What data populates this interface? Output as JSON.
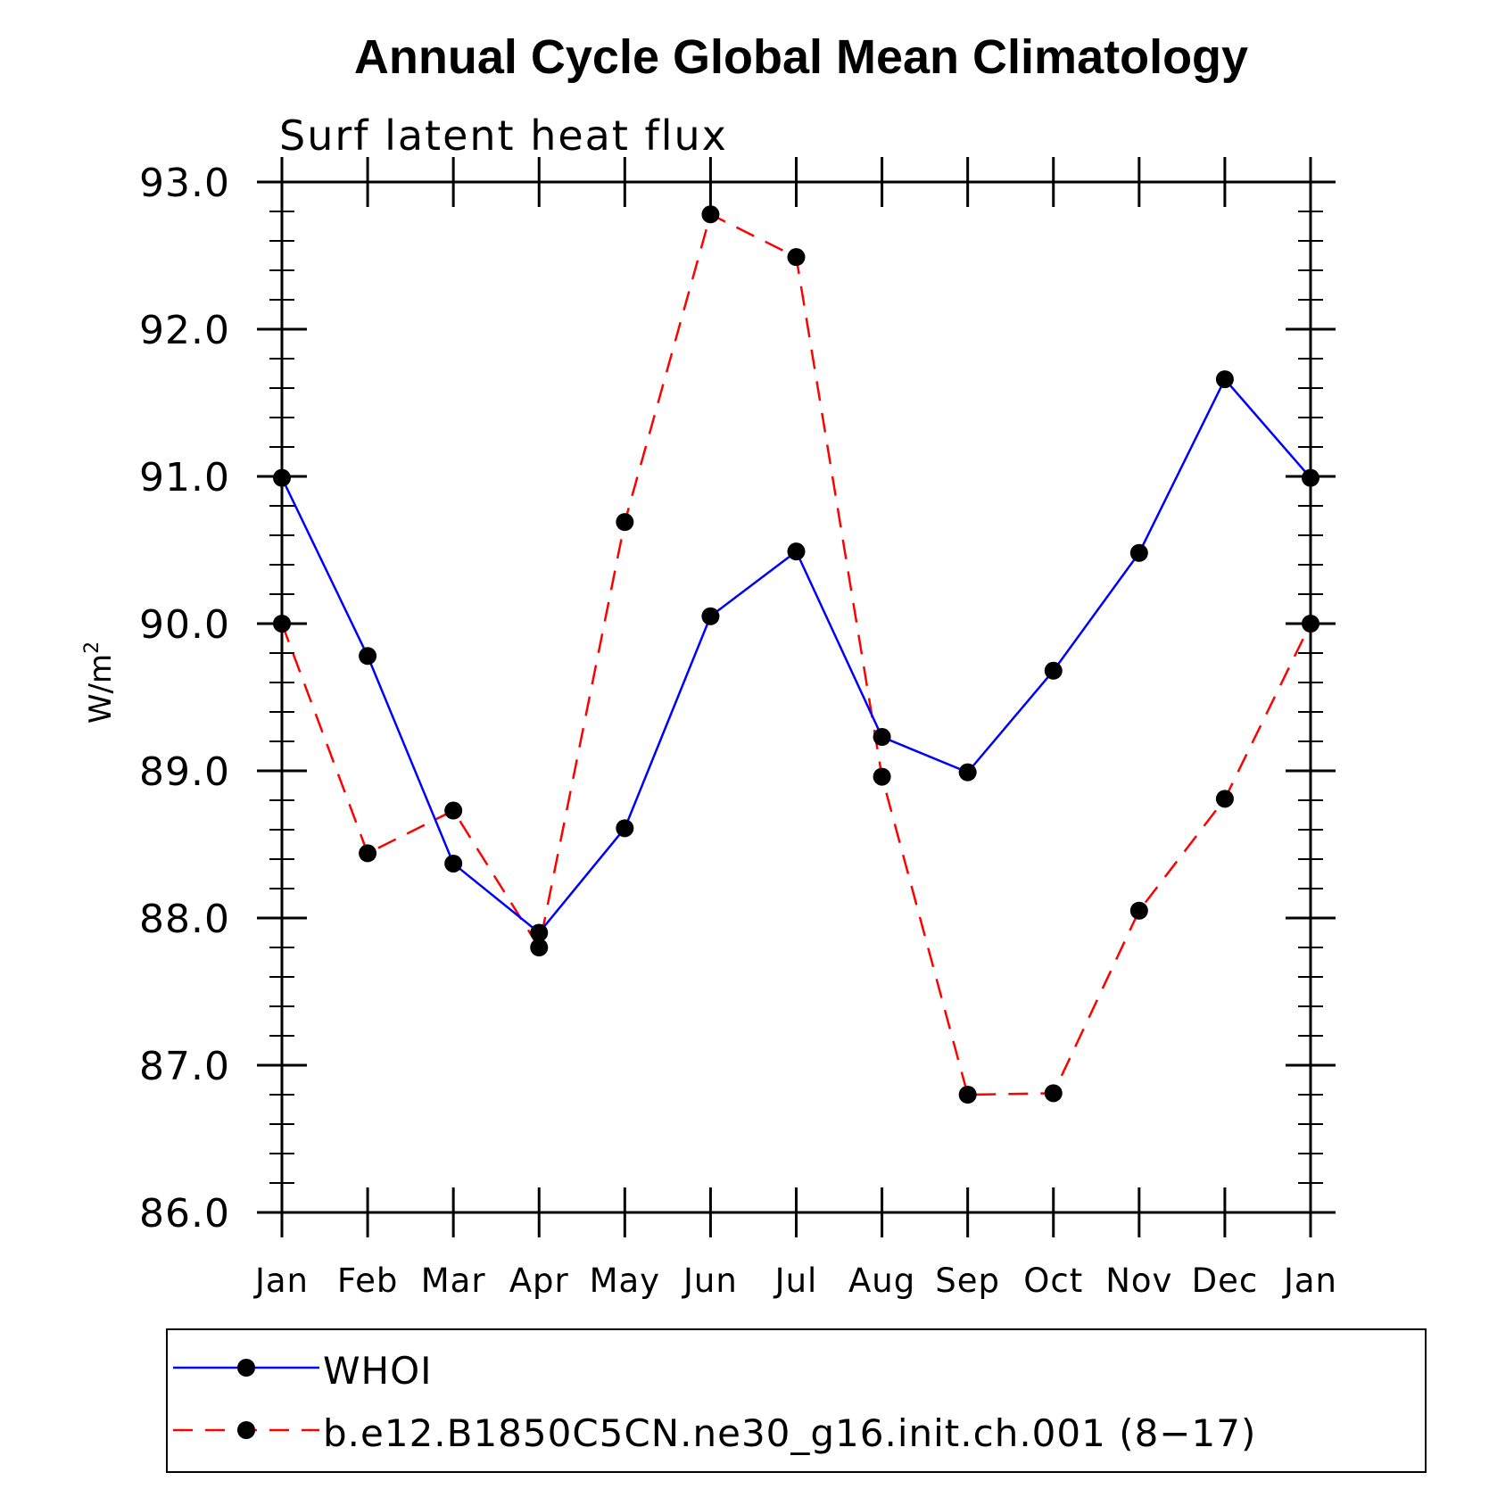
{
  "chart_data": {
    "type": "line",
    "title": "Annual Cycle Global Mean Climatology",
    "subtitle": "Surf latent heat flux",
    "ylabel": "W/m",
    "ylabel_superscript": "2",
    "xlabel": "",
    "categories": [
      "Jan",
      "Feb",
      "Mar",
      "Apr",
      "May",
      "Jun",
      "Jul",
      "Aug",
      "Sep",
      "Oct",
      "Nov",
      "Dec",
      "Jan"
    ],
    "ylim": [
      86.0,
      93.0
    ],
    "yticks": [
      86.0,
      87.0,
      88.0,
      89.0,
      90.0,
      91.0,
      92.0,
      93.0
    ],
    "ytick_labels": [
      "86.0",
      "87.0",
      "88.0",
      "89.0",
      "90.0",
      "91.0",
      "92.0",
      "93.0"
    ],
    "minor_ticks_per_major": 5,
    "grid": false,
    "legend_position": "bottom",
    "series": [
      {
        "name": "WHOI",
        "color": "#0000ff",
        "line_style": "solid",
        "marker": "filled-circle",
        "marker_color": "#000000",
        "values": [
          90.99,
          89.78,
          88.37,
          87.9,
          88.61,
          90.05,
          90.49,
          89.23,
          88.99,
          89.68,
          90.48,
          91.66,
          90.99
        ]
      },
      {
        "name": "b.e12.B1850C5CN.ne30_g16.init.ch.001 (8−17)",
        "color": "#ff0000",
        "line_style": "dashed",
        "marker": "filled-circle",
        "marker_color": "#000000",
        "values": [
          90.0,
          88.44,
          88.73,
          87.8,
          90.69,
          92.78,
          92.49,
          88.96,
          86.8,
          86.81,
          88.05,
          88.81,
          90.0
        ]
      }
    ]
  }
}
